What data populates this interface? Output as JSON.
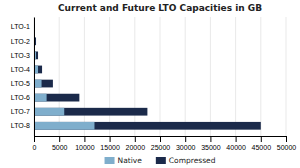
{
  "chart_data": {
    "type": "bar",
    "orientation": "horizontal",
    "stacked": false,
    "title": "Current and Future LTO Capacities in GB",
    "categories": [
      "LTO-1",
      "LTO-2",
      "LTO-3",
      "LTO-4",
      "LTO-5",
      "LTO-6",
      "LTO-7",
      "LTO-8"
    ],
    "series": [
      {
        "name": "Native",
        "color": "#7faecc",
        "values": [
          100,
          200,
          400,
          800,
          1500,
          2500,
          6000,
          12000
        ]
      },
      {
        "name": "Compressed",
        "color": "#1b2a4a",
        "values": [
          200,
          400,
          800,
          1600,
          3750,
          9000,
          22500,
          45000
        ]
      }
    ],
    "xlim": [
      0,
      50000
    ],
    "xticks": [
      0,
      5000,
      10000,
      15000,
      20000,
      25000,
      30000,
      35000,
      40000,
      45000,
      50000
    ],
    "grid": true,
    "legend": "bottom"
  }
}
